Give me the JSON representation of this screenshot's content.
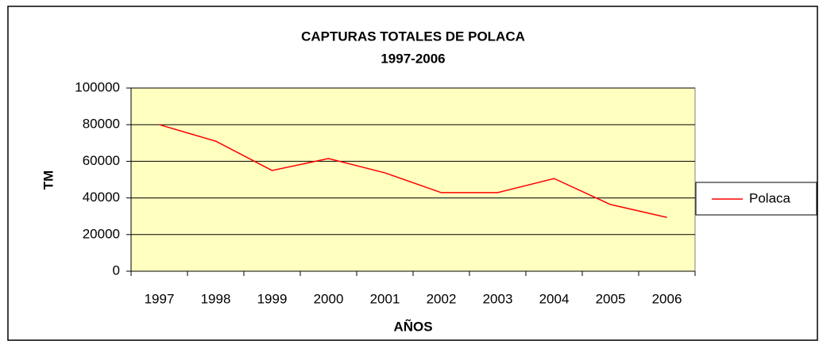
{
  "chart_data": {
    "type": "line",
    "title": "CAPTURAS TOTALES DE POLACA",
    "subtitle": "1997-2006",
    "x_label": "AÑOS",
    "y_label": "TM",
    "categories": [
      "1997",
      "1998",
      "1999",
      "2000",
      "2001",
      "2002",
      "2003",
      "2004",
      "2005",
      "2006"
    ],
    "series": [
      {
        "name": "Polaca",
        "color": "#ff0000",
        "values": [
          80000,
          71000,
          55000,
          61500,
          53700,
          42900,
          42900,
          50600,
          36400,
          29400
        ]
      }
    ],
    "ylim": [
      0,
      100000
    ],
    "yticks": [
      0,
      20000,
      40000,
      60000,
      80000,
      100000
    ],
    "grid": true,
    "legend": "right",
    "plot_color": "#ffffc0"
  }
}
